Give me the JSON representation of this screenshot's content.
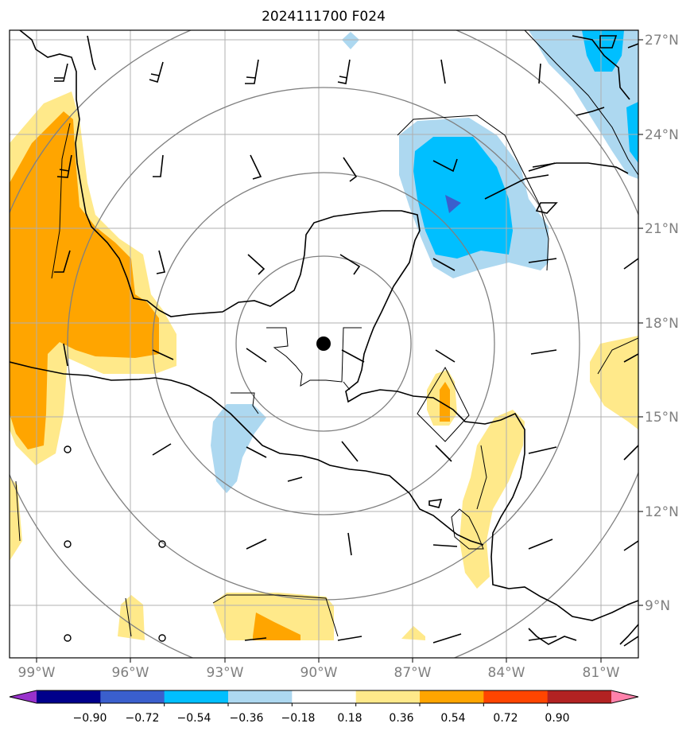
{
  "title": "2024111700 F024",
  "longitude_labels": [
    "99°W",
    "96°W",
    "93°W",
    "90°W",
    "87°W",
    "84°W",
    "81°W"
  ],
  "latitude_labels": [
    "27°N",
    "24°N",
    "21°N",
    "18°N",
    "15°N",
    "12°N",
    "9°N"
  ],
  "colorbar": {
    "tick_labels": [
      "−0.90",
      "−0.72",
      "−0.54",
      "−0.36",
      "−0.18",
      "0.18",
      "0.36",
      "0.54",
      "0.72",
      "0.90"
    ],
    "colors": [
      "#9932cc",
      "#00008b",
      "#3a5fcd",
      "#00bfff",
      "#add8f0",
      "#ffffff",
      "#ffe98a",
      "#ffa500",
      "#ff4500",
      "#b22222",
      "#ff82ab"
    ]
  },
  "colors": {
    "light_yellow": "#ffe98a",
    "orange": "#ffa500",
    "light_blue": "#add8f0",
    "deep_sky_blue": "#00bfff",
    "royal_blue": "#3a5fcd",
    "grid": "#b0b0b0",
    "range_rings": "#808080"
  },
  "center_marker": {
    "lon": -89.9,
    "lat": 17.3
  }
}
